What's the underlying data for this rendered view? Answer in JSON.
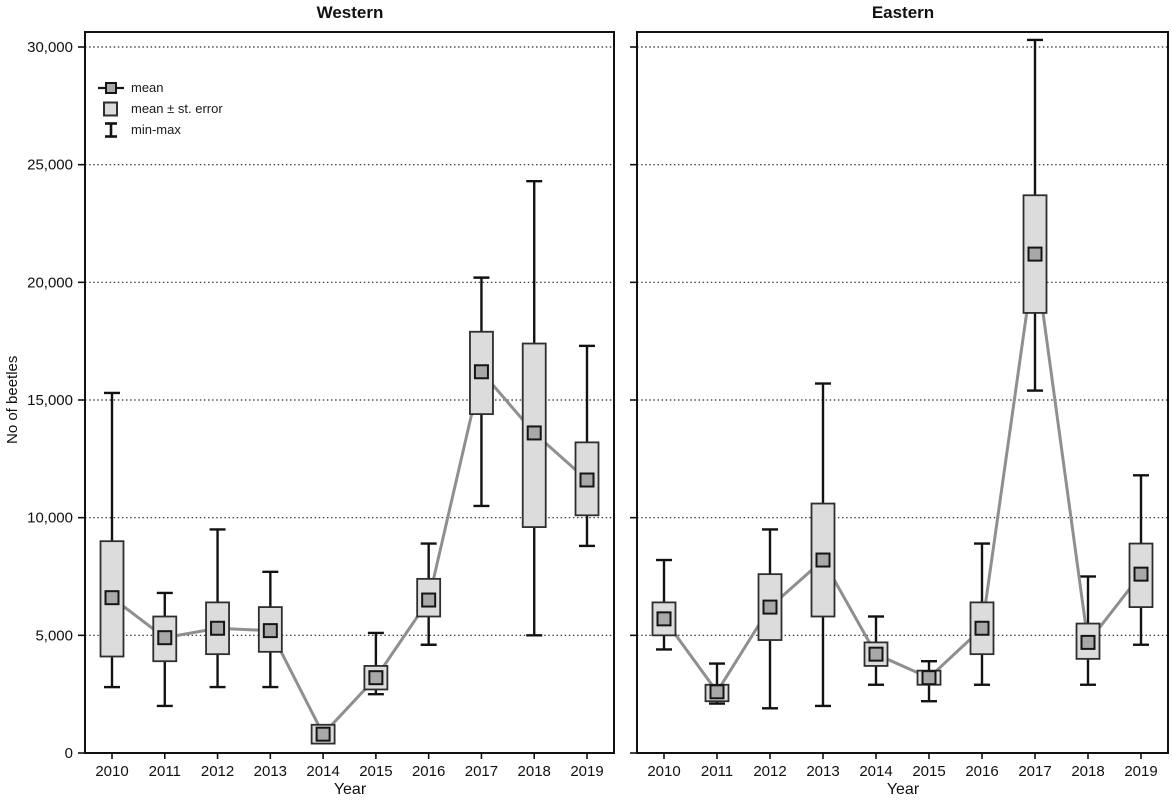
{
  "figure": {
    "ylabel": "No of beetles",
    "legend": [
      {
        "icon": "mean-marker-icon",
        "label": "mean"
      },
      {
        "icon": "se-box-icon",
        "label": "mean ± st. error"
      },
      {
        "icon": "minmax-whisker-icon",
        "label": "min-max"
      }
    ]
  },
  "colors": {
    "axis": "#111111",
    "grid": "#2a2a2a",
    "whisker": "#121212",
    "box_fill": "#dcdcdc",
    "box_stroke": "#2e2e2e",
    "mean_fill": "#a8a8a8",
    "mean_stroke": "#151515",
    "mean_line": "#8f8f8f"
  },
  "chart_data": [
    {
      "type": "box",
      "title": "Western",
      "xlabel": "Year",
      "ylabel": "No of beetles",
      "ylim": [
        0,
        30000
      ],
      "grid": "horizontal-dotted",
      "legend_position": "top-left",
      "y_ticks": [
        0,
        5000,
        10000,
        15000,
        20000,
        25000,
        30000
      ],
      "y_tick_labels": [
        "0",
        "5,000",
        "10,000",
        "15,000",
        "20,000",
        "25,000",
        "30,000"
      ],
      "categories": [
        "2010",
        "2011",
        "2012",
        "2013",
        "2014",
        "2015",
        "2016",
        "2017",
        "2018",
        "2019"
      ],
      "series": [
        {
          "name": "mean",
          "values": [
            6600,
            4900,
            5300,
            5200,
            800,
            3200,
            6500,
            16200,
            13600,
            11600
          ]
        },
        {
          "name": "mean_minus_se",
          "values": [
            4100,
            3900,
            4200,
            4300,
            400,
            2700,
            5800,
            14400,
            9600,
            10100
          ]
        },
        {
          "name": "mean_plus_se",
          "values": [
            9000,
            5800,
            6400,
            6200,
            1200,
            3700,
            7400,
            17900,
            17400,
            13200
          ]
        },
        {
          "name": "min",
          "values": [
            2800,
            2000,
            2800,
            2800,
            600,
            2500,
            4600,
            10500,
            5000,
            8800
          ]
        },
        {
          "name": "max",
          "values": [
            15300,
            6800,
            9500,
            7700,
            1000,
            5100,
            8900,
            20200,
            24300,
            17300
          ]
        }
      ]
    },
    {
      "type": "box",
      "title": "Eastern",
      "xlabel": "Year",
      "ylabel": "No of beetles",
      "ylim": [
        0,
        30000
      ],
      "grid": "horizontal-dotted",
      "legend_position": "none",
      "y_ticks": [
        0,
        5000,
        10000,
        15000,
        20000,
        25000,
        30000
      ],
      "y_tick_labels": [
        "0",
        "5,000",
        "10,000",
        "15,000",
        "20,000",
        "25,000",
        "30,000"
      ],
      "categories": [
        "2010",
        "2011",
        "2012",
        "2013",
        "2014",
        "2015",
        "2016",
        "2017",
        "2018",
        "2019"
      ],
      "series": [
        {
          "name": "mean",
          "values": [
            5700,
            2600,
            6200,
            8200,
            4200,
            3200,
            5300,
            21200,
            4700,
            7600
          ]
        },
        {
          "name": "mean_minus_se",
          "values": [
            5000,
            2200,
            4800,
            5800,
            3700,
            2900,
            4200,
            18700,
            4000,
            6200
          ]
        },
        {
          "name": "mean_plus_se",
          "values": [
            6400,
            2900,
            7600,
            10600,
            4700,
            3500,
            6400,
            23700,
            5500,
            8900
          ]
        },
        {
          "name": "min",
          "values": [
            4400,
            2100,
            1900,
            2000,
            2900,
            2200,
            2900,
            15400,
            2900,
            4600
          ]
        },
        {
          "name": "max",
          "values": [
            8200,
            3800,
            9500,
            15700,
            5800,
            3900,
            8900,
            30300,
            7500,
            11800
          ]
        }
      ]
    }
  ]
}
